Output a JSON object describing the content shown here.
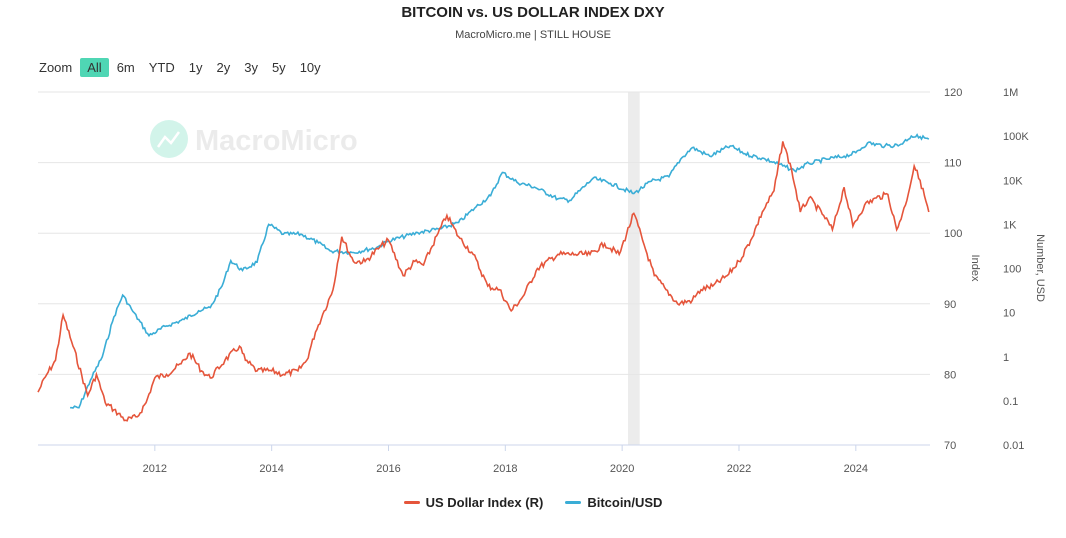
{
  "title": "BITCOIN vs. US DOLLAR INDEX DXY",
  "subtitle": "MacroMicro.me | STILL HOUSE",
  "watermark": "MacroMicro",
  "zoom": {
    "label": "Zoom",
    "buttons": [
      "All",
      "6m",
      "YTD",
      "1y",
      "2y",
      "3y",
      "5y",
      "10y"
    ],
    "active": "All"
  },
  "colors": {
    "dxy": "#e5553b",
    "btc": "#3aadd6",
    "accent": "#4fd6b4",
    "band": "#ececec"
  },
  "chart_data": {
    "type": "line",
    "x_range": [
      2010.0,
      2025.27
    ],
    "x_ticks": [
      "2012",
      "2014",
      "2016",
      "2018",
      "2020",
      "2022",
      "2024"
    ],
    "shaded_band": [
      2020.1,
      2020.3
    ],
    "grid": true,
    "legend_placement": "bottom",
    "axes": {
      "index": {
        "label": "Index",
        "range": [
          70,
          120
        ],
        "ticks": [
          "120",
          "110",
          "100",
          "90",
          "80",
          "70"
        ]
      },
      "usd": {
        "label": "Number, USD",
        "scale": "log",
        "range": [
          0.01,
          1000000
        ],
        "ticks": [
          "1M",
          "100K",
          "10K",
          "1K",
          "100",
          "10",
          "1",
          "0.1",
          "0.01"
        ]
      }
    },
    "series": [
      {
        "name": "US Dollar Index (R)",
        "axis": "index",
        "x": [
          2010.0,
          2010.15,
          2010.3,
          2010.43,
          2010.6,
          2010.85,
          2011.0,
          2011.15,
          2011.3,
          2011.5,
          2011.7,
          2011.85,
          2012.0,
          2012.2,
          2012.45,
          2012.6,
          2012.8,
          2012.95,
          2013.2,
          2013.45,
          2013.55,
          2013.75,
          2014.0,
          2014.2,
          2014.45,
          2014.6,
          2014.75,
          2014.9,
          2015.05,
          2015.2,
          2015.4,
          2015.6,
          2015.85,
          2016.0,
          2016.25,
          2016.45,
          2016.6,
          2016.85,
          2017.0,
          2017.2,
          2017.45,
          2017.7,
          2017.9,
          2018.1,
          2018.3,
          2018.55,
          2018.9,
          2019.2,
          2019.45,
          2019.7,
          2019.95,
          2020.2,
          2020.35,
          2020.55,
          2020.75,
          2020.95,
          2021.2,
          2021.35,
          2021.55,
          2021.8,
          2022.0,
          2022.2,
          2022.4,
          2022.6,
          2022.75,
          2022.9,
          2023.05,
          2023.2,
          2023.45,
          2023.6,
          2023.8,
          2023.95,
          2024.15,
          2024.35,
          2024.55,
          2024.7,
          2024.85,
          2025.0,
          2025.1,
          2025.25
        ],
        "y": [
          77.5,
          80,
          82,
          88.4,
          84,
          77,
          80,
          76,
          75,
          73.5,
          74,
          76,
          79.5,
          80,
          81.5,
          83,
          80.5,
          79.5,
          82,
          84,
          82,
          80.5,
          80.5,
          80,
          80.5,
          82,
          86,
          89,
          92,
          99.5,
          96,
          96,
          98,
          99,
          94,
          96,
          95.5,
          100,
          102.5,
          99.5,
          97,
          92.5,
          92,
          89,
          91,
          95,
          97,
          97,
          97,
          98.5,
          97,
          102.8,
          99,
          94,
          92,
          90,
          90.5,
          92,
          92.5,
          94,
          96,
          99,
          103,
          106,
          113,
          109,
          103,
          105,
          102.5,
          100.5,
          106.5,
          101,
          104,
          105,
          105.5,
          100.5,
          104,
          109.5,
          107.5,
          103
        ]
      },
      {
        "name": "Bitcoin/USD",
        "axis": "usd",
        "x": [
          2010.55,
          2010.7,
          2010.9,
          2011.1,
          2011.3,
          2011.45,
          2011.6,
          2011.9,
          2012.2,
          2012.5,
          2012.75,
          2012.95,
          2013.15,
          2013.3,
          2013.5,
          2013.75,
          2013.95,
          2014.2,
          2014.5,
          2014.8,
          2015.0,
          2015.4,
          2015.8,
          2016.0,
          2016.5,
          2016.9,
          2017.2,
          2017.5,
          2017.75,
          2017.95,
          2018.2,
          2018.5,
          2018.9,
          2019.1,
          2019.5,
          2019.8,
          2020.2,
          2020.5,
          2020.8,
          2021.0,
          2021.2,
          2021.5,
          2021.85,
          2022.1,
          2022.45,
          2022.8,
          2022.95,
          2023.2,
          2023.5,
          2023.8,
          2024.0,
          2024.2,
          2024.5,
          2024.75,
          2024.95,
          2025.1,
          2025.25
        ],
        "y": [
          0.07,
          0.07,
          0.3,
          1,
          8,
          25,
          12,
          3,
          5,
          7,
          11,
          13,
          40,
          150,
          90,
          140,
          1000,
          600,
          600,
          380,
          250,
          230,
          300,
          420,
          650,
          800,
          1100,
          2500,
          4500,
          15000,
          9000,
          7000,
          3800,
          3500,
          11000,
          8500,
          5000,
          9500,
          12000,
          30000,
          55000,
          35000,
          60000,
          40000,
          30000,
          20000,
          16500,
          24000,
          30000,
          35000,
          42000,
          70000,
          60000,
          63000,
          100000,
          97000,
          85000
        ]
      }
    ]
  }
}
